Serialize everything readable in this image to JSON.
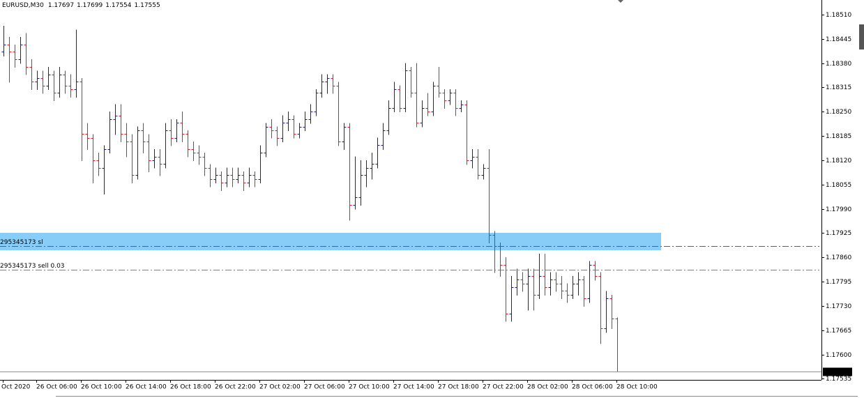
{
  "chart_data": {
    "type": "ohlc",
    "title": "EURUSD,M30",
    "ylim": [
      1.18549,
      1.17532
    ],
    "yticks": [
      {
        "value": 1.1851,
        "label": "1.18510"
      },
      1.18445,
      {
        "value": 1.1838,
        "label": "1.18380"
      },
      1.18315,
      {
        "value": 1.1825,
        "label": "1.18250"
      },
      1.18185,
      {
        "value": 1.1812,
        "label": "1.18120"
      },
      1.18055,
      {
        "value": 1.1799,
        "label": "1.17990"
      },
      1.17925,
      {
        "value": 1.1786,
        "label": "1.17860"
      },
      1.17795,
      {
        "value": 1.1773,
        "label": "1.17730"
      },
      1.17665,
      {
        "value": 1.176,
        "label": "1.17600"
      },
      1.17535
    ],
    "categories": [
      "Oct 2020",
      null,
      null,
      null,
      null,
      null,
      "26 Oct 06:00",
      null,
      null,
      null,
      null,
      null,
      null,
      null,
      "26 Oct 10:00",
      null,
      null,
      null,
      null,
      null,
      null,
      null,
      "26 Oct 14:00",
      null,
      null,
      null,
      null,
      null,
      null,
      null,
      "26 Oct 18:00",
      null,
      null,
      null,
      null,
      null,
      null,
      null,
      "26 Oct 22:00",
      null,
      null,
      null,
      null,
      null,
      null,
      null,
      "27 Oct 02:00",
      null,
      null,
      null,
      null,
      null,
      null,
      null,
      "27 Oct 06:00",
      null,
      null,
      null,
      null,
      null,
      null,
      null,
      "27 Oct 10:00",
      null,
      null,
      null,
      null,
      null,
      null,
      null,
      "27 Oct 14:00",
      null,
      null,
      null,
      null,
      null,
      null,
      null,
      "27 Oct 18:00",
      null,
      null,
      null,
      null,
      null,
      null,
      null,
      "27 Oct 22:00",
      null,
      null,
      null,
      null,
      null,
      null,
      null,
      "28 Oct 02:00",
      null,
      null,
      null,
      null,
      null,
      null,
      null,
      "28 Oct 06:00",
      null,
      null,
      null,
      null,
      null,
      null,
      null,
      "28 Oct 10:00"
    ],
    "up_color": "#1c1c8e",
    "down_color": "#dc2020",
    "series": [
      {
        "name": "EURUSD,M30",
        "ohlc": [
          [
            1.1841,
            1.1848,
            1.184,
            1.1843
          ],
          [
            1.1843,
            1.1845,
            1.1833,
            1.1841
          ],
          [
            1.1841,
            1.1843,
            1.1837,
            1.1839
          ],
          [
            1.1839,
            1.1845,
            1.1838,
            1.1843
          ],
          [
            1.1843,
            1.1846,
            1.1835,
            1.1837
          ],
          [
            1.1837,
            1.1839,
            1.1831,
            1.1833
          ],
          [
            1.1833,
            1.1836,
            1.1831,
            1.1834
          ],
          [
            1.1834,
            1.1836,
            1.183,
            1.1832
          ],
          [
            1.1832,
            1.1837,
            1.1831,
            1.1835
          ],
          [
            1.1835,
            1.1836,
            1.1828,
            1.183
          ],
          [
            1.183,
            1.1837,
            1.1829,
            1.1835
          ],
          [
            1.1835,
            1.1836,
            1.183,
            1.1832
          ],
          [
            1.1832,
            1.1835,
            1.1829,
            1.1831
          ],
          [
            1.1831,
            1.1847,
            1.1829,
            1.1833
          ],
          [
            1.1833,
            1.1834,
            1.1812,
            1.1819
          ],
          [
            1.1819,
            1.1822,
            1.1815,
            1.1818
          ],
          [
            1.1818,
            1.1819,
            1.1806,
            1.1812
          ],
          [
            1.1812,
            1.1814,
            1.1808,
            1.181
          ],
          [
            1.181,
            1.1816,
            1.1803,
            1.1815
          ],
          [
            1.1815,
            1.1825,
            1.1814,
            1.1823
          ],
          [
            1.1823,
            1.1827,
            1.1819,
            1.1824
          ],
          [
            1.1824,
            1.1827,
            1.1817,
            1.1819
          ],
          [
            1.1819,
            1.1822,
            1.1813,
            1.1817
          ],
          [
            1.1817,
            1.1819,
            1.1806,
            1.1808
          ],
          [
            1.1808,
            1.1821,
            1.1807,
            1.182
          ],
          [
            1.182,
            1.1822,
            1.1814,
            1.1817
          ],
          [
            1.1817,
            1.1819,
            1.1809,
            1.1812
          ],
          [
            1.1812,
            1.1815,
            1.181,
            1.1813
          ],
          [
            1.1813,
            1.1815,
            1.1808,
            1.1811
          ],
          [
            1.1811,
            1.1822,
            1.181,
            1.182
          ],
          [
            1.182,
            1.1823,
            1.1816,
            1.1818
          ],
          [
            1.1818,
            1.1823,
            1.1817,
            1.1822
          ],
          [
            1.1822,
            1.1825,
            1.1817,
            1.1819
          ],
          [
            1.1819,
            1.182,
            1.1813,
            1.1815
          ],
          [
            1.1815,
            1.1817,
            1.1812,
            1.1814
          ],
          [
            1.1814,
            1.1816,
            1.1811,
            1.1813
          ],
          [
            1.1813,
            1.1814,
            1.1808,
            1.181
          ],
          [
            1.181,
            1.1811,
            1.1805,
            1.1807
          ],
          [
            1.1807,
            1.181,
            1.1806,
            1.1808
          ],
          [
            1.1808,
            1.1809,
            1.1804,
            1.1806
          ],
          [
            1.1806,
            1.181,
            1.1805,
            1.1808
          ],
          [
            1.1808,
            1.181,
            1.1805,
            1.1807
          ],
          [
            1.1807,
            1.181,
            1.1806,
            1.1808
          ],
          [
            1.1808,
            1.1809,
            1.1804,
            1.1806
          ],
          [
            1.1806,
            1.181,
            1.1805,
            1.1808
          ],
          [
            1.1808,
            1.1809,
            1.1805,
            1.1807
          ],
          [
            1.1807,
            1.1816,
            1.1806,
            1.1814
          ],
          [
            1.1814,
            1.1822,
            1.1813,
            1.1821
          ],
          [
            1.1821,
            1.1823,
            1.1818,
            1.182
          ],
          [
            1.182,
            1.1821,
            1.1816,
            1.1818
          ],
          [
            1.1818,
            1.1824,
            1.1817,
            1.1822
          ],
          [
            1.1822,
            1.1825,
            1.182,
            1.1823
          ],
          [
            1.1823,
            1.1824,
            1.1818,
            1.1819
          ],
          [
            1.1819,
            1.1822,
            1.1818,
            1.1821
          ],
          [
            1.1821,
            1.1825,
            1.182,
            1.1823
          ],
          [
            1.1823,
            1.1827,
            1.1822,
            1.1825
          ],
          [
            1.1825,
            1.1831,
            1.1824,
            1.183
          ],
          [
            1.183,
            1.1835,
            1.1829,
            1.1833
          ],
          [
            1.1833,
            1.1835,
            1.183,
            1.1834
          ],
          [
            1.1834,
            1.1835,
            1.183,
            1.1832
          ],
          [
            1.1832,
            1.1833,
            1.1816,
            1.1817
          ],
          [
            1.1817,
            1.1822,
            1.1815,
            1.1821
          ],
          [
            1.1821,
            1.1822,
            1.1796,
            1.18
          ],
          [
            1.18,
            1.1813,
            1.1799,
            1.1802
          ],
          [
            1.1802,
            1.1812,
            1.18,
            1.1808
          ],
          [
            1.1808,
            1.1812,
            1.1805,
            1.181
          ],
          [
            1.181,
            1.1814,
            1.1807,
            1.1811
          ],
          [
            1.1811,
            1.1818,
            1.181,
            1.1816
          ],
          [
            1.1816,
            1.1822,
            1.1815,
            1.182
          ],
          [
            1.182,
            1.1828,
            1.1819,
            1.1826
          ],
          [
            1.1826,
            1.1833,
            1.1825,
            1.1831
          ],
          [
            1.1831,
            1.1832,
            1.1825,
            1.1826
          ],
          [
            1.1826,
            1.1838,
            1.1825,
            1.1836
          ],
          [
            1.1836,
            1.1837,
            1.1829,
            1.183
          ],
          [
            1.183,
            1.1838,
            1.1821,
            1.1822
          ],
          [
            1.1822,
            1.1828,
            1.1821,
            1.1826
          ],
          [
            1.1826,
            1.183,
            1.1824,
            1.1825
          ],
          [
            1.1825,
            1.1833,
            1.1824,
            1.1832
          ],
          [
            1.1832,
            1.1837,
            1.1829,
            1.183
          ],
          [
            1.183,
            1.1831,
            1.1826,
            1.1828
          ],
          [
            1.1828,
            1.1831,
            1.1827,
            1.183
          ],
          [
            1.183,
            1.1831,
            1.1824,
            1.1826
          ],
          [
            1.1826,
            1.1828,
            1.1825,
            1.1827
          ],
          [
            1.1827,
            1.1828,
            1.1811,
            1.1812
          ],
          [
            1.1812,
            1.1815,
            1.181,
            1.1813
          ],
          [
            1.1813,
            1.1815,
            1.1807,
            1.1808
          ],
          [
            1.1808,
            1.1811,
            1.1807,
            1.181
          ],
          [
            1.181,
            1.1815,
            1.179,
            1.1792
          ],
          [
            1.1792,
            1.1793,
            1.1782,
            1.1789
          ],
          [
            1.1789,
            1.179,
            1.1781,
            1.1784
          ],
          [
            1.1784,
            1.1786,
            1.1769,
            1.1771
          ],
          [
            1.1771,
            1.1781,
            1.1769,
            1.1778
          ],
          [
            1.1778,
            1.1783,
            1.1776,
            1.178
          ],
          [
            1.178,
            1.1782,
            1.1777,
            1.1779
          ],
          [
            1.1779,
            1.1783,
            1.1772,
            1.1781
          ],
          [
            1.1781,
            1.1783,
            1.1772,
            1.1776
          ],
          [
            1.1776,
            1.1787,
            1.1775,
            1.1781
          ],
          [
            1.1781,
            1.1787,
            1.1776,
            1.1778
          ],
          [
            1.1778,
            1.1782,
            1.1776,
            1.178
          ],
          [
            1.178,
            1.1782,
            1.1777,
            1.1779
          ],
          [
            1.1779,
            1.1781,
            1.1775,
            1.1777
          ],
          [
            1.1777,
            1.1779,
            1.1774,
            1.1776
          ],
          [
            1.1776,
            1.1781,
            1.1775,
            1.1779
          ],
          [
            1.1779,
            1.1782,
            1.1776,
            1.178
          ],
          [
            1.178,
            1.1781,
            1.1773,
            1.1775
          ],
          [
            1.1775,
            1.1785,
            1.1774,
            1.1784
          ],
          [
            1.1784,
            1.1785,
            1.178,
            1.1781
          ],
          [
            1.1781,
            1.1782,
            1.1763,
            1.1767
          ],
          [
            1.1767,
            1.1777,
            1.1766,
            1.1775
          ],
          [
            1.1775,
            1.1776,
            1.1767,
            1.17697
          ],
          [
            1.17697,
            1.17699,
            1.17554,
            1.17555
          ]
        ]
      }
    ],
    "levels": [
      {
        "label": "295345173 sl",
        "value": 1.17891,
        "color": "#c83232"
      },
      {
        "label": "295345173 sell 0.03",
        "value": 1.17827,
        "color": "#3cb43c"
      }
    ]
  }
}
